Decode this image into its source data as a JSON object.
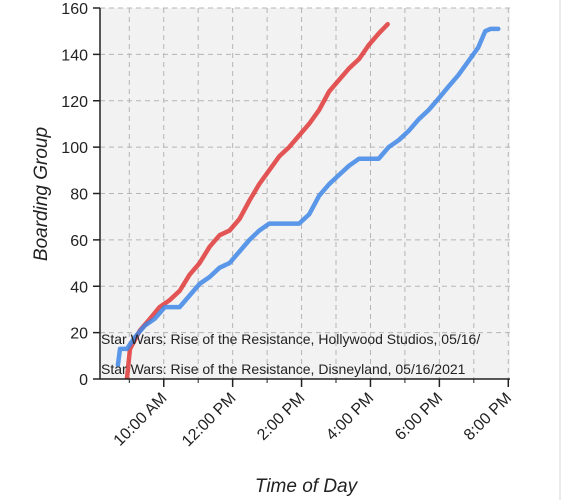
{
  "chart_data": {
    "type": "line",
    "x_label": "Time of Day",
    "y_label": "Boarding Group",
    "xlim": [
      8.15,
      20.05
    ],
    "ylim": [
      0,
      160
    ],
    "yticks": [
      0,
      20,
      40,
      60,
      80,
      100,
      120,
      140,
      160
    ],
    "xticks": [
      {
        "value": 10,
        "label": "10:00 AM"
      },
      {
        "value": 12,
        "label": "12:00 PM"
      },
      {
        "value": 14,
        "label": "2:00 PM"
      },
      {
        "value": 16,
        "label": "4:00 PM"
      },
      {
        "value": 18,
        "label": "6:00 PM"
      },
      {
        "value": 20,
        "label": "8:00 PM"
      }
    ],
    "xminor": [
      9,
      11,
      13,
      15,
      17,
      19
    ],
    "grid": true,
    "series": [
      {
        "name": "Star Wars: Rise of the Resistance, Hollywood Studios, 05/16/",
        "color": "#e03a3a",
        "x": [
          8.93,
          9.02,
          9.31,
          9.6,
          9.88,
          10.17,
          10.46,
          10.75,
          11.04,
          11.33,
          11.62,
          11.91,
          12.2,
          12.49,
          12.77,
          13.06,
          13.35,
          13.64,
          13.93,
          14.22,
          14.51,
          14.8,
          15.09,
          15.38,
          15.67,
          15.95,
          16.24,
          16.5
        ],
        "values": [
          0,
          13,
          21,
          26,
          31,
          34,
          38,
          45,
          50,
          57,
          62,
          64,
          69,
          77,
          84,
          90,
          96,
          100,
          105,
          110,
          116,
          124,
          129,
          134,
          138,
          144,
          149,
          153
        ]
      },
      {
        "name": "Star Wars: Rise of the Resistance, Disneyland, 05/16/2021",
        "color": "#3f87e6",
        "x": [
          8.67,
          8.73,
          8.93,
          9.16,
          9.45,
          9.74,
          10.03,
          10.46,
          10.75,
          11.04,
          11.33,
          11.62,
          11.91,
          12.2,
          12.49,
          12.77,
          13.06,
          13.93,
          14.22,
          14.51,
          14.8,
          15.09,
          15.38,
          15.67,
          16.24,
          16.53,
          16.82,
          17.11,
          17.4,
          17.69,
          17.98,
          18.26,
          18.55,
          18.84,
          19.13,
          19.33,
          19.48,
          19.71
        ],
        "values": [
          6,
          13,
          13,
          18,
          23,
          26,
          31,
          31,
          36,
          41,
          44,
          48,
          50,
          55,
          60,
          64,
          67,
          67,
          71,
          79,
          84,
          88,
          92,
          95,
          95,
          100,
          103,
          107,
          112,
          116,
          121,
          126,
          131,
          137,
          143,
          150,
          151,
          151
        ]
      }
    ]
  }
}
